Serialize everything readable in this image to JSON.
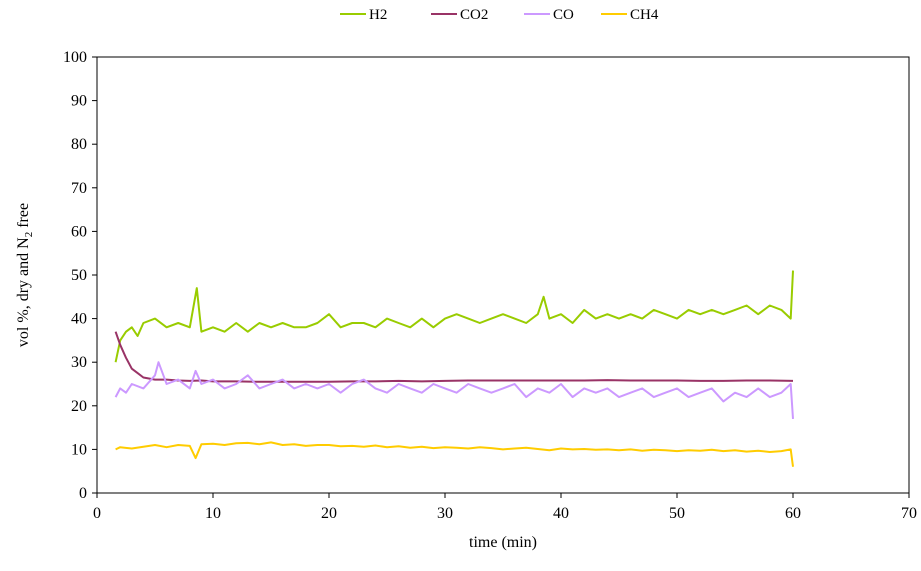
{
  "chart_data": {
    "type": "line",
    "title": "",
    "xlabel": "time (min)",
    "ylabel": "vol %, dry and N",
    "ylabel_subscript": "2",
    "ylabel_suffix": " free",
    "xlim": [
      0,
      70
    ],
    "ylim": [
      0,
      100
    ],
    "xticks": [
      0,
      10,
      20,
      30,
      40,
      50,
      60,
      70
    ],
    "yticks": [
      0,
      10,
      20,
      30,
      40,
      50,
      60,
      70,
      80,
      90,
      100
    ],
    "xtick_labels": [
      "0",
      "10",
      "20",
      "30",
      "40",
      "50",
      "60",
      "70"
    ],
    "ytick_labels": [
      "0",
      "10",
      "20",
      "30",
      "40",
      "50",
      "60",
      "70",
      "80",
      "90",
      "100"
    ],
    "grid": false,
    "legend_position": "top",
    "series": [
      {
        "name": "H2",
        "color": "#99CC00",
        "x": [
          1.6,
          2.0,
          2.5,
          3,
          3.5,
          4,
          5,
          6,
          7,
          8,
          8.6,
          9,
          10,
          11,
          12,
          13,
          14,
          15,
          16,
          17,
          18,
          19,
          20,
          21,
          22,
          23,
          24,
          25,
          26,
          27,
          28,
          29,
          30,
          31,
          32,
          33,
          34,
          35,
          36,
          37,
          38,
          38.5,
          39,
          40,
          41,
          42,
          43,
          44,
          45,
          46,
          47,
          48,
          49,
          50,
          51,
          52,
          53,
          54,
          55,
          56,
          57,
          58,
          59,
          59.8,
          60
        ],
        "y": [
          30,
          35,
          37,
          38,
          36,
          39,
          40,
          38,
          39,
          38,
          47,
          37,
          38,
          37,
          39,
          37,
          39,
          38,
          39,
          38,
          38,
          39,
          41,
          38,
          39,
          39,
          38,
          40,
          39,
          38,
          40,
          38,
          40,
          41,
          40,
          39,
          40,
          41,
          40,
          39,
          41,
          45,
          40,
          41,
          39,
          42,
          40,
          41,
          40,
          41,
          40,
          42,
          41,
          40,
          42,
          41,
          42,
          41,
          42,
          43,
          41,
          43,
          42,
          40,
          51
        ]
      },
      {
        "name": "CO2",
        "color": "#993366",
        "x": [
          1.6,
          2.0,
          2.5,
          3,
          3.5,
          4,
          5,
          6,
          7,
          8,
          9,
          10,
          12,
          14,
          16,
          18,
          20,
          22,
          24,
          26,
          28,
          30,
          32,
          34,
          36,
          38,
          40,
          42,
          44,
          46,
          48,
          50,
          52,
          54,
          56,
          58,
          60
        ],
        "y": [
          37,
          34,
          31,
          28.5,
          27.5,
          26.5,
          26,
          26,
          25.8,
          25.7,
          25.8,
          25.6,
          25.6,
          25.5,
          25.5,
          25.5,
          25.5,
          25.6,
          25.6,
          25.7,
          25.6,
          25.7,
          25.8,
          25.8,
          25.8,
          25.8,
          25.8,
          25.8,
          25.9,
          25.8,
          25.8,
          25.8,
          25.7,
          25.7,
          25.8,
          25.8,
          25.7
        ]
      },
      {
        "name": "CO",
        "color": "#CC99FF",
        "x": [
          1.6,
          2,
          2.5,
          3,
          4,
          5,
          5.3,
          6,
          7,
          8,
          8.5,
          9,
          10,
          11,
          12,
          13,
          14,
          15,
          16,
          17,
          18,
          19,
          20,
          21,
          22,
          23,
          24,
          25,
          26,
          27,
          28,
          29,
          30,
          31,
          32,
          33,
          34,
          35,
          36,
          37,
          38,
          39,
          40,
          41,
          42,
          43,
          44,
          45,
          46,
          47,
          48,
          49,
          50,
          51,
          52,
          53,
          54,
          55,
          56,
          57,
          58,
          59,
          59.8,
          60
        ],
        "y": [
          22,
          24,
          23,
          25,
          24,
          27,
          30,
          25,
          26,
          24,
          28,
          25,
          26,
          24,
          25,
          27,
          24,
          25,
          26,
          24,
          25,
          24,
          25,
          23,
          25,
          26,
          24,
          23,
          25,
          24,
          23,
          25,
          24,
          23,
          25,
          24,
          23,
          24,
          25,
          22,
          24,
          23,
          25,
          22,
          24,
          23,
          24,
          22,
          23,
          24,
          22,
          23,
          24,
          22,
          23,
          24,
          21,
          23,
          22,
          24,
          22,
          23,
          25,
          17
        ]
      },
      {
        "name": "CH4",
        "color": "#FFCC00",
        "x": [
          1.6,
          2,
          3,
          4,
          5,
          6,
          7,
          8,
          8.5,
          9,
          10,
          11,
          12,
          13,
          14,
          15,
          16,
          17,
          18,
          19,
          20,
          21,
          22,
          23,
          24,
          25,
          26,
          27,
          28,
          29,
          30,
          31,
          32,
          33,
          34,
          35,
          36,
          37,
          38,
          39,
          40,
          41,
          42,
          43,
          44,
          45,
          46,
          47,
          48,
          49,
          50,
          51,
          52,
          53,
          54,
          55,
          56,
          57,
          58,
          59,
          59.8,
          60
        ],
        "y": [
          10,
          10.5,
          10.2,
          10.6,
          11,
          10.5,
          11,
          10.8,
          8,
          11.2,
          11.3,
          11,
          11.4,
          11.5,
          11.2,
          11.6,
          11,
          11.2,
          10.8,
          11,
          11,
          10.7,
          10.8,
          10.6,
          10.9,
          10.5,
          10.7,
          10.4,
          10.6,
          10.3,
          10.5,
          10.4,
          10.2,
          10.5,
          10.3,
          10,
          10.2,
          10.4,
          10.1,
          9.8,
          10.2,
          10,
          10.1,
          9.9,
          10,
          9.8,
          10,
          9.7,
          9.9,
          9.8,
          9.6,
          9.8,
          9.7,
          9.9,
          9.6,
          9.8,
          9.5,
          9.7,
          9.4,
          9.6,
          10,
          6
        ]
      }
    ]
  }
}
